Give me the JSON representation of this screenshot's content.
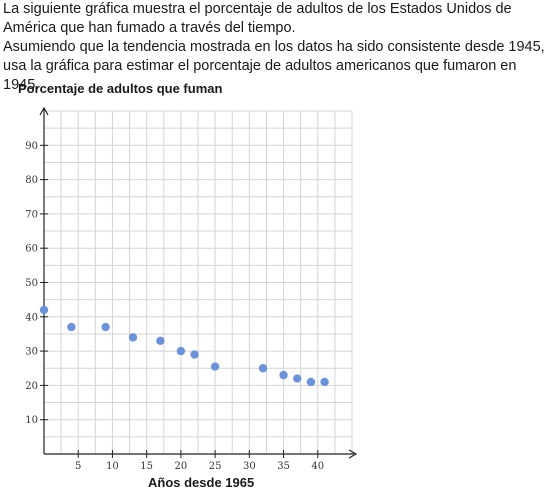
{
  "prompt": {
    "line1": "La siguiente gráfica muestra el porcentaje de adultos de los Estados Unidos de América que han fumado a través del tiempo.",
    "line2": "Asumiendo que la tendencia mostrada en los datos ha sido consistente desde 1945, usa la gráfica para estimar el porcentaje de adultos americanos que fumaron en 1945."
  },
  "chart_data": {
    "type": "scatter",
    "title": "Porcentaje de adultos que fuman",
    "xlabel": "Años desde 1965",
    "ylabel": "",
    "xlim": [
      0,
      45
    ],
    "ylim": [
      0,
      100
    ],
    "xticks": [
      5,
      10,
      15,
      20,
      25,
      30,
      35,
      40
    ],
    "yticks": [
      10,
      20,
      30,
      40,
      50,
      60,
      70,
      80,
      90
    ],
    "grid": true,
    "point_color": "#6b93dc",
    "points": [
      {
        "x": 0,
        "y": 42
      },
      {
        "x": 4,
        "y": 37
      },
      {
        "x": 9,
        "y": 37
      },
      {
        "x": 13,
        "y": 34
      },
      {
        "x": 17,
        "y": 33
      },
      {
        "x": 20,
        "y": 30
      },
      {
        "x": 22,
        "y": 29
      },
      {
        "x": 25,
        "y": 25.5
      },
      {
        "x": 32,
        "y": 25
      },
      {
        "x": 35,
        "y": 23
      },
      {
        "x": 37,
        "y": 22
      },
      {
        "x": 39,
        "y": 21
      },
      {
        "x": 41,
        "y": 21
      }
    ]
  }
}
